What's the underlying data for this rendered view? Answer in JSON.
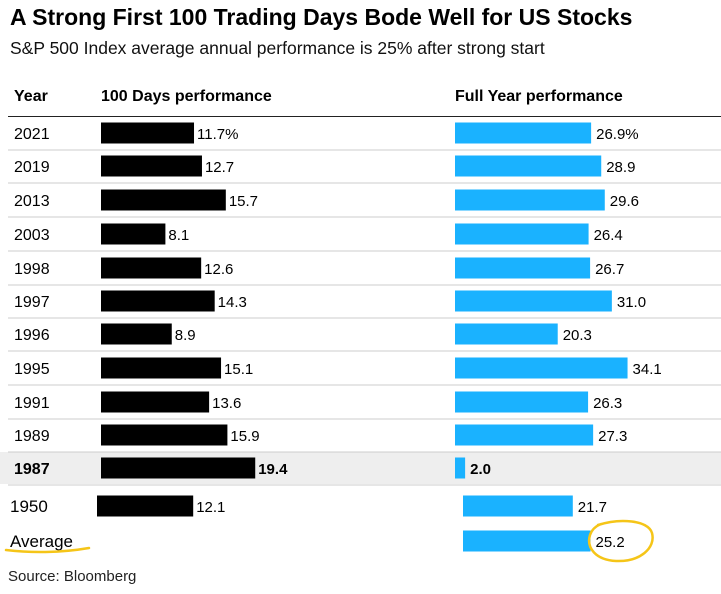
{
  "title": "A Strong First 100 Trading Days Bode Well for US Stocks",
  "subtitle": "S&P 500 Index average annual performance is 25% after strong start",
  "source": "Source: Bloomberg",
  "columns": {
    "year": "Year",
    "hundred_days": "100 Days performance",
    "full_year": "Full Year performance"
  },
  "colors": {
    "hundred_days_bar": "#000000",
    "full_year_bar": "#1ab2ff",
    "highlight_row": "#eeeeee",
    "annotation": "#f5c518"
  },
  "chart_data": {
    "type": "bar",
    "title": "A Strong First 100 Trading Days Bode Well for US Stocks",
    "categories": [
      "2021",
      "2019",
      "2013",
      "2003",
      "1998",
      "1997",
      "1996",
      "1995",
      "1991",
      "1989",
      "1987",
      "1950",
      "Average"
    ],
    "series": [
      {
        "name": "100 Days performance",
        "values": [
          11.7,
          12.7,
          15.7,
          8.1,
          12.6,
          14.3,
          8.9,
          15.1,
          13.6,
          15.9,
          19.4,
          12.1,
          null
        ],
        "labels": [
          "11.7%",
          "12.7",
          "15.7",
          "8.1",
          "12.6",
          "14.3",
          "8.9",
          "15.1",
          "13.6",
          "15.9",
          "19.4",
          "12.1",
          ""
        ]
      },
      {
        "name": "Full Year performance",
        "values": [
          26.9,
          28.9,
          29.6,
          26.4,
          26.7,
          31.0,
          20.3,
          34.1,
          26.3,
          27.3,
          2.0,
          21.7,
          25.2
        ],
        "labels": [
          "26.9%",
          "28.9",
          "29.6",
          "26.4",
          "26.7",
          "31.0",
          "20.3",
          "34.1",
          "26.3",
          "27.3",
          "2.0",
          "21.7",
          "25.2"
        ]
      }
    ],
    "highlighted_category": "1987",
    "circled_category": "Average",
    "units": "%"
  }
}
